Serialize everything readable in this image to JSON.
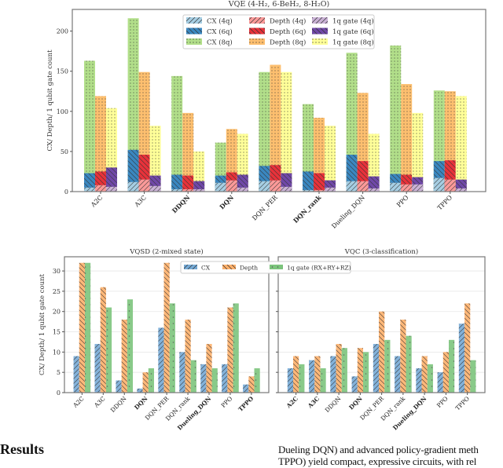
{
  "chart_data": [
    {
      "type": "bar",
      "subtype": "overlaid grouped bars (4q in front of 6q in front of 8q)",
      "title": "VQE (4-H₂, 6-BeH₂, 8-H₂O)",
      "ylabel": "CX/ Depth/ 1 qubit gate count",
      "ylim": [
        0,
        227
      ],
      "yticks": [
        0,
        50,
        100,
        150,
        200
      ],
      "legend_placement": "top-center",
      "categories": [
        "A2C",
        "A3C",
        "DDQN",
        "DQN",
        "DQN_PER",
        "DQN_rank",
        "Dueling_DQN",
        "PPO",
        "TPPO"
      ],
      "bold_categories": [
        "DDQN",
        "DQN",
        "DQN_rank"
      ],
      "series": [
        {
          "name": "CX (4q)",
          "metric": "CX",
          "color": "#a6cee3",
          "hatch": "diag-fwd",
          "values": [
            5,
            12,
            3,
            11,
            13,
            2,
            13,
            11,
            17
          ]
        },
        {
          "name": "CX (6q)",
          "metric": "CX",
          "color": "#3a87c0",
          "hatch": "diag-back",
          "values": [
            23,
            52,
            21,
            20,
            32,
            25,
            46,
            22,
            38
          ]
        },
        {
          "name": "CX (8q)",
          "metric": "CX",
          "color": "#b2df8a",
          "hatch": "dots",
          "values": [
            163,
            216,
            144,
            61,
            149,
            109,
            173,
            182,
            126
          ]
        },
        {
          "name": "Depth (4q)",
          "metric": "Depth",
          "color": "#fb9a99",
          "hatch": "diag-fwd",
          "values": [
            8,
            15,
            3,
            14,
            14,
            2,
            13,
            9,
            15
          ]
        },
        {
          "name": "Depth (6q)",
          "metric": "Depth",
          "color": "#e8323a",
          "hatch": "diag-back",
          "values": [
            25,
            46,
            20,
            24,
            33,
            23,
            38,
            21,
            39
          ]
        },
        {
          "name": "Depth (8q)",
          "metric": "Depth",
          "color": "#fdbf6f",
          "hatch": "dots",
          "values": [
            119,
            149,
            98,
            78,
            158,
            92,
            123,
            134,
            125
          ]
        },
        {
          "name": "1q gate (4q)",
          "metric": "1q",
          "color": "#cab2d6",
          "hatch": "diag-fwd",
          "values": [
            6,
            7,
            3,
            5,
            6,
            5,
            4,
            9,
            4
          ]
        },
        {
          "name": "1q gate (6q)",
          "metric": "1q",
          "color": "#7048a8",
          "hatch": "diag-back",
          "values": [
            30,
            20,
            13,
            21,
            23,
            14,
            19,
            18,
            15
          ]
        },
        {
          "name": "1q gate (8q)",
          "metric": "1q",
          "color": "#ffff99",
          "hatch": "dots",
          "values": [
            104,
            82,
            50,
            72,
            149,
            82,
            72,
            98,
            119
          ]
        }
      ]
    },
    {
      "type": "bar",
      "title": "VQSD (2-mixed state)",
      "ylabel": "CX/ Depth/ 1 qubit gate count",
      "ylim": [
        0,
        33.5
      ],
      "yticks": [
        0,
        5,
        10,
        15,
        20,
        25,
        30
      ],
      "grid": true,
      "legend_placement": "top-right",
      "categories": [
        "A2C",
        "A3C",
        "DDQN",
        "DQN",
        "DQN_PER",
        "DQN_rank",
        "Dueling_DQN",
        "PPO",
        "TPPO"
      ],
      "bold_categories": [
        "DQN",
        "Dueling_DQN",
        "TPPO"
      ],
      "series": [
        {
          "name": "CX",
          "color": "#75aad6",
          "hatch": "diag-fwd",
          "values": [
            9,
            12,
            3,
            1,
            16,
            10,
            7,
            7,
            2
          ]
        },
        {
          "name": "Depth",
          "color": "#ffb06a",
          "hatch": "diag-back",
          "values": [
            32,
            26,
            18,
            5,
            32,
            18,
            12,
            21,
            4
          ]
        },
        {
          "name": "1q gate (RX+RY+RZ)",
          "color": "#7cc47c",
          "hatch": "dots",
          "values": [
            32,
            21,
            23,
            6,
            22,
            8,
            6,
            22,
            6
          ]
        }
      ]
    },
    {
      "type": "bar",
      "title": "VQC (3-classification)",
      "ylim": [
        0,
        33.5
      ],
      "sharey": true,
      "grid": true,
      "categories": [
        "A2C",
        "A3C",
        "DDQN",
        "DQN",
        "DQN_PER",
        "DQN_rank",
        "Dueling_DQN",
        "PPO",
        "TPPO"
      ],
      "bold_categories": [
        "A2C",
        "A3C",
        "DQN",
        "Dueling_DQN"
      ],
      "series": [
        {
          "name": "CX",
          "color": "#75aad6",
          "hatch": "diag-fwd",
          "values": [
            6,
            8,
            9,
            4,
            12,
            9,
            6,
            5,
            17
          ]
        },
        {
          "name": "Depth",
          "color": "#ffb06a",
          "hatch": "diag-back",
          "values": [
            9,
            9,
            12,
            11,
            20,
            18,
            9,
            10,
            22
          ]
        },
        {
          "name": "1q gate (RX+RY+RZ)",
          "color": "#7cc47c",
          "hatch": "dots",
          "values": [
            7,
            6,
            11,
            10,
            13,
            14,
            7,
            13,
            8
          ]
        }
      ]
    }
  ],
  "text": {
    "results_heading": "Results",
    "body_line1": "Dueling DQN) and advanced policy-gradient meth",
    "body_line2": "TPPO) yield compact, expressive circuits, with rel"
  }
}
